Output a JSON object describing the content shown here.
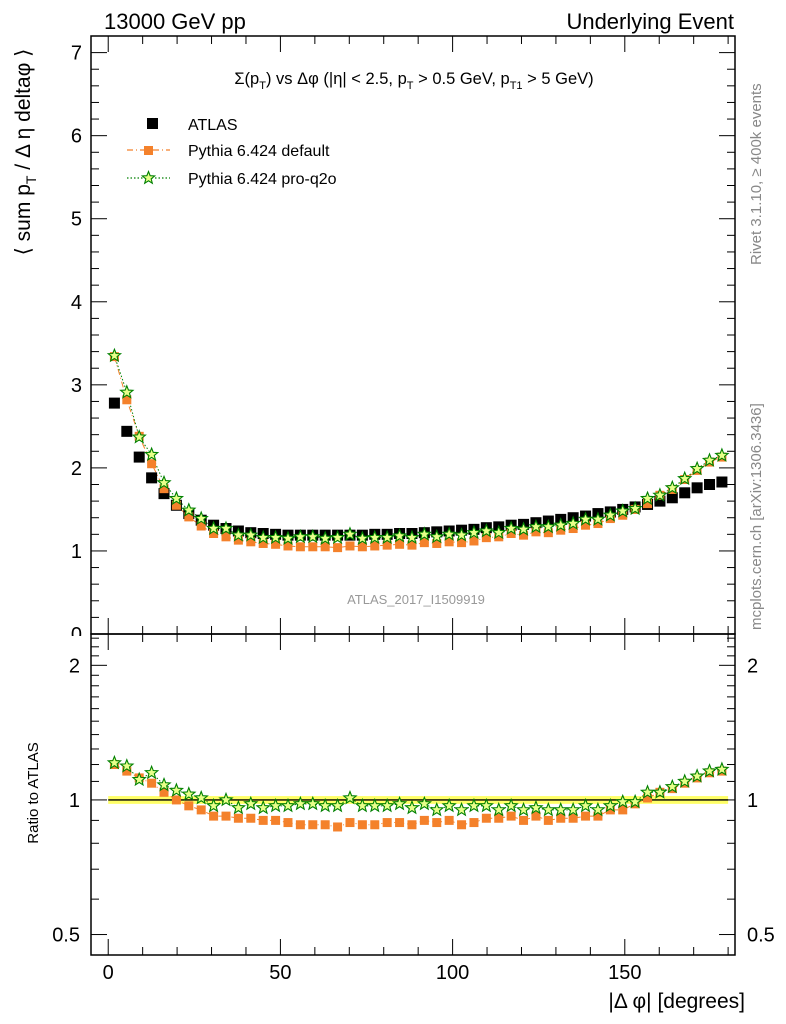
{
  "header": {
    "left": "13000 GeV pp",
    "right": "Underlying Event"
  },
  "chart_data": [
    {
      "type": "scatter",
      "panel": "main",
      "title": "Σ(pT) vs Δφ (|η| < 2.5, pT > 0.5 GeV, pT1 > 5 GeV)",
      "ylabel": "⟨ sum pT / Δη deltaφ ⟩",
      "xlabel": "|Δ φ| [degrees]",
      "xlim": [
        -5,
        182
      ],
      "ylim": [
        0,
        7.2
      ],
      "x_ticks": [
        0,
        50,
        100,
        150
      ],
      "y_ticks": [
        1,
        2,
        3,
        4,
        5,
        6,
        7
      ],
      "legend_position": "top-left",
      "x": [
        1.8,
        5.4,
        9.0,
        12.6,
        16.2,
        19.8,
        23.4,
        27.0,
        30.6,
        34.2,
        37.8,
        41.4,
        45.0,
        48.6,
        52.2,
        55.8,
        59.4,
        63.0,
        66.6,
        70.2,
        73.8,
        77.4,
        81.0,
        84.6,
        88.2,
        91.8,
        95.4,
        99.0,
        102.6,
        106.2,
        109.8,
        113.4,
        117.0,
        120.6,
        124.2,
        127.8,
        131.4,
        135.0,
        138.6,
        142.2,
        145.8,
        149.4,
        153.0,
        156.6,
        160.2,
        163.8,
        167.4,
        171.0,
        174.6,
        178.2
      ],
      "series": [
        {
          "name": "ATLAS",
          "color": "#000000",
          "marker": "square",
          "values": [
            2.78,
            2.44,
            2.13,
            1.88,
            1.69,
            1.55,
            1.45,
            1.37,
            1.31,
            1.27,
            1.24,
            1.22,
            1.21,
            1.2,
            1.19,
            1.19,
            1.19,
            1.19,
            1.19,
            1.19,
            1.19,
            1.2,
            1.2,
            1.21,
            1.21,
            1.22,
            1.23,
            1.24,
            1.25,
            1.26,
            1.28,
            1.29,
            1.31,
            1.32,
            1.34,
            1.36,
            1.38,
            1.4,
            1.42,
            1.45,
            1.47,
            1.5,
            1.53,
            1.56,
            1.6,
            1.64,
            1.7,
            1.76,
            1.8,
            1.83
          ]
        },
        {
          "name": "Pythia 6.424 default",
          "color": "#f4812b",
          "marker": "square",
          "values": [
            3.34,
            2.82,
            2.38,
            2.05,
            1.75,
            1.55,
            1.41,
            1.3,
            1.21,
            1.17,
            1.13,
            1.11,
            1.09,
            1.08,
            1.06,
            1.05,
            1.05,
            1.05,
            1.04,
            1.06,
            1.05,
            1.06,
            1.07,
            1.08,
            1.07,
            1.1,
            1.09,
            1.11,
            1.1,
            1.12,
            1.16,
            1.17,
            1.21,
            1.19,
            1.23,
            1.22,
            1.25,
            1.27,
            1.31,
            1.33,
            1.39,
            1.43,
            1.5,
            1.57,
            1.67,
            1.74,
            1.86,
            1.97,
            2.07,
            2.13
          ]
        },
        {
          "name": "Pythia 6.424 pro-q2o",
          "color": "#008000",
          "marker": "star",
          "values": [
            3.35,
            2.91,
            2.37,
            2.16,
            1.82,
            1.63,
            1.49,
            1.39,
            1.27,
            1.27,
            1.19,
            1.19,
            1.16,
            1.16,
            1.15,
            1.17,
            1.17,
            1.15,
            1.16,
            1.2,
            1.15,
            1.16,
            1.16,
            1.18,
            1.16,
            1.2,
            1.17,
            1.2,
            1.19,
            1.22,
            1.24,
            1.22,
            1.27,
            1.26,
            1.29,
            1.29,
            1.31,
            1.33,
            1.38,
            1.38,
            1.43,
            1.48,
            1.51,
            1.63,
            1.67,
            1.76,
            1.87,
            1.99,
            2.09,
            2.15
          ]
        }
      ]
    },
    {
      "type": "scatter",
      "panel": "ratio",
      "ylabel": "Ratio to ATLAS",
      "xlabel": "|Δ φ| [degrees]",
      "xlim": [
        -5,
        182
      ],
      "ylim": [
        0.45,
        2.35
      ],
      "y_log": true,
      "y_ticks": [
        0.5,
        1,
        2
      ],
      "band": {
        "center": 1.0,
        "half_width": 0.02,
        "color": "#ffff66"
      },
      "series": [
        {
          "name": "Pythia 6.424 default",
          "color": "#f4812b",
          "marker": "square",
          "values": [
            1.2,
            1.16,
            1.12,
            1.09,
            1.04,
            1.0,
            0.97,
            0.95,
            0.92,
            0.92,
            0.91,
            0.91,
            0.9,
            0.9,
            0.89,
            0.88,
            0.88,
            0.88,
            0.87,
            0.89,
            0.88,
            0.88,
            0.89,
            0.89,
            0.88,
            0.9,
            0.89,
            0.9,
            0.88,
            0.89,
            0.91,
            0.91,
            0.92,
            0.9,
            0.92,
            0.9,
            0.91,
            0.91,
            0.92,
            0.92,
            0.95,
            0.95,
            0.98,
            1.01,
            1.04,
            1.06,
            1.09,
            1.12,
            1.15,
            1.16
          ]
        },
        {
          "name": "Pythia 6.424 pro-q2o",
          "color": "#008000",
          "marker": "star",
          "values": [
            1.21,
            1.19,
            1.11,
            1.15,
            1.08,
            1.05,
            1.03,
            1.01,
            0.97,
            1.0,
            0.96,
            0.98,
            0.96,
            0.97,
            0.97,
            0.98,
            0.98,
            0.97,
            0.97,
            1.01,
            0.97,
            0.97,
            0.97,
            0.98,
            0.96,
            0.98,
            0.95,
            0.97,
            0.95,
            0.97,
            0.97,
            0.95,
            0.97,
            0.95,
            0.96,
            0.95,
            0.95,
            0.95,
            0.97,
            0.95,
            0.97,
            0.99,
            0.99,
            1.04,
            1.04,
            1.07,
            1.1,
            1.13,
            1.16,
            1.17
          ]
        }
      ]
    }
  ],
  "watermark": "ATLAS_2017_I1509919",
  "side_label_top": "Rivet 3.1.10, ≥ 400k events",
  "side_label_bottom": "mcplots.cern.ch [arXiv:1306.3436]"
}
